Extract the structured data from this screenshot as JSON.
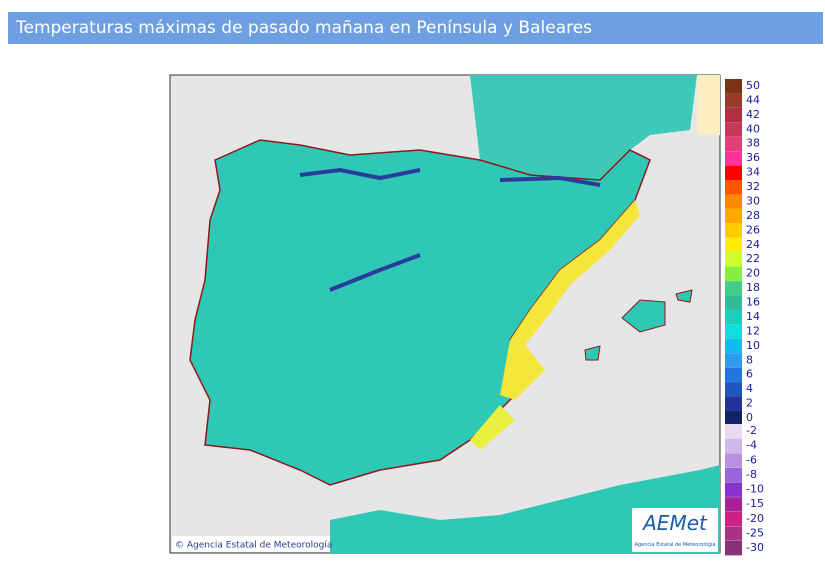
{
  "header": {
    "title": "Temperaturas máximas de pasado mañana en Península y Baleares"
  },
  "map": {
    "credit": "© Agencia Estatal de Meteorología",
    "logo": "AEMet",
    "logo_caption": "Agencia Estatal de Meteorología"
  },
  "legend": {
    "values": [
      50,
      44,
      42,
      40,
      38,
      36,
      34,
      32,
      30,
      28,
      26,
      24,
      22,
      20,
      18,
      16,
      14,
      12,
      10,
      8,
      6,
      4,
      2,
      0,
      -2,
      -4,
      -6,
      -8,
      -10,
      -15,
      -20,
      -25,
      -30
    ],
    "colors": [
      "#7a3311",
      "#9c3a2a",
      "#b03040",
      "#c8385a",
      "#e0407a",
      "#ff3399",
      "#ff0000",
      "#ff5500",
      "#ff8800",
      "#ffaa00",
      "#ffcc00",
      "#ffee00",
      "#ccff33",
      "#88ee44",
      "#44cc88",
      "#33bb99",
      "#22ccbb",
      "#11dddd",
      "#11bbee",
      "#3399ee",
      "#2277dd",
      "#2255bb",
      "#223399",
      "#112266",
      "#e8d8f0",
      "#d0b8e8",
      "#b890e0",
      "#9966dd",
      "#8833cc",
      "#aa2299",
      "#cc2288",
      "#aa3388",
      "#883377"
    ]
  }
}
